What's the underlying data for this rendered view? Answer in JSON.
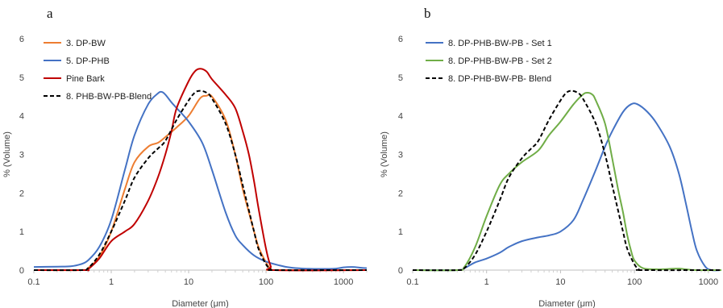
{
  "chart_data": [
    {
      "type": "line",
      "panel_label": "a",
      "xlabel": "Diameter (μm)",
      "ylabel": "% (Volume)",
      "x_scale": "log",
      "xlim": [
        0.1,
        2000
      ],
      "ylim": [
        0,
        6
      ],
      "x_ticks": [
        "0.1",
        "1",
        "10",
        "100",
        "1000"
      ],
      "y_ticks": [
        "0",
        "1",
        "2",
        "3",
        "4",
        "5",
        "6"
      ],
      "grid": false,
      "legend_position": "top-left",
      "series": [
        {
          "name": "3. DP-BW",
          "color": "#ED7D31",
          "dash": "solid",
          "points": [
            [
              0.1,
              0
            ],
            [
              0.4,
              0
            ],
            [
              0.5,
              0.05
            ],
            [
              0.7,
              0.35
            ],
            [
              1.0,
              1.0
            ],
            [
              1.5,
              2.1
            ],
            [
              2.0,
              2.8
            ],
            [
              3.0,
              3.2
            ],
            [
              4.0,
              3.3
            ],
            [
              5.0,
              3.45
            ],
            [
              7.0,
              3.7
            ],
            [
              10.0,
              4.0
            ],
            [
              14.0,
              4.45
            ],
            [
              17.0,
              4.52
            ],
            [
              20.0,
              4.5
            ],
            [
              30.0,
              3.9
            ],
            [
              40.0,
              3.0
            ],
            [
              50.0,
              2.1
            ],
            [
              60.0,
              1.5
            ],
            [
              70.0,
              1.0
            ],
            [
              80.0,
              0.6
            ],
            [
              100.0,
              0.2
            ],
            [
              115.0,
              0.03
            ],
            [
              130.0,
              0
            ],
            [
              2000.0,
              0
            ]
          ]
        },
        {
          "name": "5. DP-PHB",
          "color": "#4472C4",
          "dash": "solid",
          "points": [
            [
              0.1,
              0.08
            ],
            [
              0.2,
              0.09
            ],
            [
              0.3,
              0.1
            ],
            [
              0.4,
              0.15
            ],
            [
              0.5,
              0.25
            ],
            [
              0.7,
              0.6
            ],
            [
              1.0,
              1.3
            ],
            [
              1.5,
              2.6
            ],
            [
              2.0,
              3.5
            ],
            [
              3.0,
              4.3
            ],
            [
              4.0,
              4.58
            ],
            [
              4.5,
              4.62
            ],
            [
              5.0,
              4.55
            ],
            [
              6.0,
              4.35
            ],
            [
              7.0,
              4.2
            ],
            [
              10.0,
              3.85
            ],
            [
              15.0,
              3.3
            ],
            [
              20.0,
              2.6
            ],
            [
              30.0,
              1.5
            ],
            [
              40.0,
              0.9
            ],
            [
              50.0,
              0.65
            ],
            [
              70.0,
              0.38
            ],
            [
              100.0,
              0.22
            ],
            [
              150.0,
              0.12
            ],
            [
              200.0,
              0.07
            ],
            [
              300.0,
              0.04
            ],
            [
              500.0,
              0.03
            ],
            [
              800.0,
              0.04
            ],
            [
              1000.0,
              0.07
            ],
            [
              1300.0,
              0.08
            ],
            [
              1700.0,
              0.06
            ],
            [
              2000.0,
              0.05
            ]
          ]
        },
        {
          "name": "Pine Bark",
          "color": "#C00000",
          "dash": "solid",
          "points": [
            [
              0.1,
              0
            ],
            [
              0.45,
              0
            ],
            [
              0.5,
              0.02
            ],
            [
              0.7,
              0.3
            ],
            [
              1.0,
              0.75
            ],
            [
              1.5,
              1.0
            ],
            [
              2.0,
              1.2
            ],
            [
              3.0,
              1.8
            ],
            [
              4.0,
              2.4
            ],
            [
              5.0,
              3.0
            ],
            [
              6.0,
              3.6
            ],
            [
              7.0,
              4.2
            ],
            [
              10.0,
              4.9
            ],
            [
              12.0,
              5.15
            ],
            [
              14.0,
              5.22
            ],
            [
              17.0,
              5.15
            ],
            [
              20.0,
              4.95
            ],
            [
              30.0,
              4.55
            ],
            [
              40.0,
              4.2
            ],
            [
              50.0,
              3.6
            ],
            [
              60.0,
              3.0
            ],
            [
              70.0,
              2.3
            ],
            [
              80.0,
              1.6
            ],
            [
              100.0,
              0.55
            ],
            [
              115.0,
              0.1
            ],
            [
              130.0,
              0
            ],
            [
              2000.0,
              0
            ]
          ]
        },
        {
          "name": "8. PHB-BW-PB-Blend",
          "color": "#000000",
          "dash": "dashed",
          "points": [
            [
              0.1,
              0
            ],
            [
              0.4,
              0
            ],
            [
              0.5,
              0.05
            ],
            [
              0.7,
              0.4
            ],
            [
              1.0,
              1.0
            ],
            [
              1.5,
              1.8
            ],
            [
              2.0,
              2.4
            ],
            [
              3.0,
              2.9
            ],
            [
              4.0,
              3.15
            ],
            [
              5.0,
              3.35
            ],
            [
              7.0,
              3.9
            ],
            [
              10.0,
              4.4
            ],
            [
              12.0,
              4.6
            ],
            [
              14.0,
              4.65
            ],
            [
              17.0,
              4.6
            ],
            [
              20.0,
              4.45
            ],
            [
              30.0,
              3.8
            ],
            [
              40.0,
              3.0
            ],
            [
              50.0,
              2.2
            ],
            [
              60.0,
              1.55
            ],
            [
              70.0,
              1.0
            ],
            [
              80.0,
              0.55
            ],
            [
              100.0,
              0.15
            ],
            [
              115.0,
              0.02
            ],
            [
              130.0,
              0
            ],
            [
              2000.0,
              0
            ]
          ]
        }
      ]
    },
    {
      "type": "line",
      "panel_label": "b",
      "xlabel": "Diameter (μm)",
      "ylabel": "% (Volume)",
      "x_scale": "log",
      "xlim": [
        0.1,
        1500
      ],
      "ylim": [
        0,
        6
      ],
      "x_ticks": [
        "0.1",
        "1",
        "10",
        "100",
        "1000"
      ],
      "y_ticks": [
        "0",
        "1",
        "2",
        "3",
        "4",
        "5",
        "6"
      ],
      "grid": false,
      "legend_position": "top-left",
      "series": [
        {
          "name": "8. DP-PHB-BW-PB - Set 1",
          "color": "#4472C4",
          "dash": "solid",
          "points": [
            [
              0.1,
              0
            ],
            [
              0.4,
              0
            ],
            [
              0.5,
              0.05
            ],
            [
              0.7,
              0.2
            ],
            [
              1.0,
              0.3
            ],
            [
              1.5,
              0.45
            ],
            [
              2.0,
              0.6
            ],
            [
              3.0,
              0.75
            ],
            [
              5.0,
              0.85
            ],
            [
              7.0,
              0.9
            ],
            [
              10.0,
              1.0
            ],
            [
              15.0,
              1.3
            ],
            [
              20.0,
              1.8
            ],
            [
              30.0,
              2.6
            ],
            [
              40.0,
              3.2
            ],
            [
              50.0,
              3.6
            ],
            [
              70.0,
              4.1
            ],
            [
              90.0,
              4.3
            ],
            [
              110.0,
              4.3
            ],
            [
              150.0,
              4.1
            ],
            [
              200.0,
              3.8
            ],
            [
              300.0,
              3.2
            ],
            [
              400.0,
              2.5
            ],
            [
              500.0,
              1.7
            ],
            [
              600.0,
              1.0
            ],
            [
              700.0,
              0.5
            ],
            [
              900.0,
              0.1
            ],
            [
              1100.0,
              0
            ],
            [
              1500.0,
              0
            ]
          ]
        },
        {
          "name": "8. DP-PHB-BW-PB - Set 2",
          "color": "#70AD47",
          "dash": "solid",
          "points": [
            [
              0.1,
              0
            ],
            [
              0.4,
              0
            ],
            [
              0.5,
              0.08
            ],
            [
              0.7,
              0.6
            ],
            [
              1.0,
              1.4
            ],
            [
              1.5,
              2.2
            ],
            [
              2.0,
              2.5
            ],
            [
              3.0,
              2.8
            ],
            [
              5.0,
              3.1
            ],
            [
              7.0,
              3.5
            ],
            [
              10.0,
              3.85
            ],
            [
              15.0,
              4.3
            ],
            [
              20.0,
              4.55
            ],
            [
              23.0,
              4.6
            ],
            [
              27.0,
              4.55
            ],
            [
              30.0,
              4.4
            ],
            [
              40.0,
              3.8
            ],
            [
              50.0,
              2.9
            ],
            [
              60.0,
              2.1
            ],
            [
              70.0,
              1.5
            ],
            [
              80.0,
              0.9
            ],
            [
              90.0,
              0.5
            ],
            [
              100.0,
              0.25
            ],
            [
              130.0,
              0.05
            ],
            [
              200.0,
              0.02
            ],
            [
              300.0,
              0.03
            ],
            [
              400.0,
              0.04
            ],
            [
              500.0,
              0.02
            ],
            [
              700.0,
              0
            ],
            [
              1500.0,
              0
            ]
          ]
        },
        {
          "name": "8. DP-PHB-BW-PB- Blend",
          "color": "#000000",
          "dash": "dashed",
          "points": [
            [
              0.1,
              0
            ],
            [
              0.4,
              0
            ],
            [
              0.5,
              0.05
            ],
            [
              0.7,
              0.4
            ],
            [
              1.0,
              1.0
            ],
            [
              1.5,
              1.8
            ],
            [
              2.0,
              2.4
            ],
            [
              3.0,
              2.9
            ],
            [
              4.0,
              3.15
            ],
            [
              5.0,
              3.35
            ],
            [
              7.0,
              3.9
            ],
            [
              10.0,
              4.4
            ],
            [
              12.0,
              4.6
            ],
            [
              14.0,
              4.65
            ],
            [
              17.0,
              4.6
            ],
            [
              20.0,
              4.45
            ],
            [
              30.0,
              3.8
            ],
            [
              40.0,
              3.0
            ],
            [
              50.0,
              2.2
            ],
            [
              60.0,
              1.55
            ],
            [
              70.0,
              1.0
            ],
            [
              80.0,
              0.55
            ],
            [
              100.0,
              0.15
            ],
            [
              115.0,
              0.02
            ],
            [
              130.0,
              0
            ],
            [
              1500.0,
              0
            ]
          ]
        }
      ]
    }
  ]
}
